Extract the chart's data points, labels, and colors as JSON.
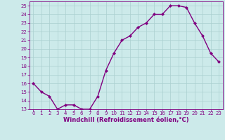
{
  "x": [
    0,
    1,
    2,
    3,
    4,
    5,
    6,
    7,
    8,
    9,
    10,
    11,
    12,
    13,
    14,
    15,
    16,
    17,
    18,
    19,
    20,
    21,
    22,
    23
  ],
  "y": [
    16.0,
    15.0,
    14.5,
    13.0,
    13.5,
    13.5,
    13.0,
    13.0,
    14.5,
    17.5,
    19.5,
    21.0,
    21.5,
    22.5,
    23.0,
    24.0,
    24.0,
    25.0,
    25.0,
    24.8,
    23.0,
    21.5,
    19.5,
    18.5
  ],
  "line_color": "#800080",
  "marker": "D",
  "marker_size": 2.0,
  "bg_color": "#cceaea",
  "grid_color": "#aacfcf",
  "xlabel": "Windchill (Refroidissement éolien,°C)",
  "xlim": [
    -0.5,
    23.5
  ],
  "ylim": [
    13,
    25.5
  ],
  "yticks": [
    13,
    14,
    15,
    16,
    17,
    18,
    19,
    20,
    21,
    22,
    23,
    24,
    25
  ],
  "xticks": [
    0,
    1,
    2,
    3,
    4,
    5,
    6,
    7,
    8,
    9,
    10,
    11,
    12,
    13,
    14,
    15,
    16,
    17,
    18,
    19,
    20,
    21,
    22,
    23
  ],
  "tick_color": "#800080",
  "label_color": "#800080",
  "line_width": 1.0,
  "tick_fontsize": 5.0,
  "xlabel_fontsize": 6.0
}
